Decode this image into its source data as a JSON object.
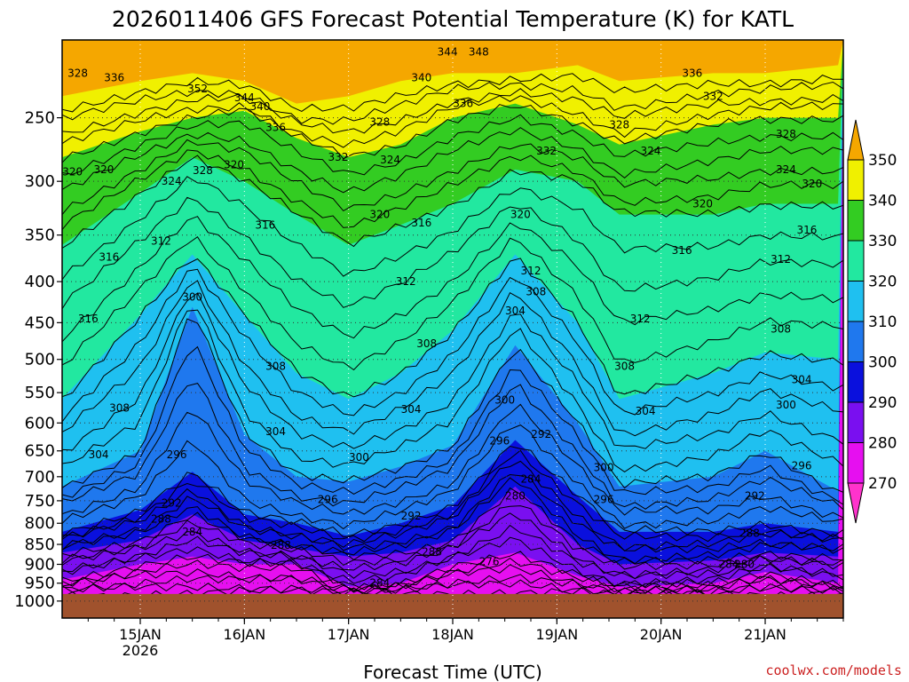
{
  "chart_data": {
    "type": "contour",
    "title": "2026011406 GFS Forecast Potential Temperature (K) for KATL",
    "xlabel": "Forecast Time (UTC)",
    "credit": "coolwx.com/models",
    "y_axis": {
      "scale": "log",
      "reversed": true,
      "range": [
        1000,
        200
      ],
      "ticks": [
        1000,
        950,
        900,
        850,
        800,
        750,
        700,
        650,
        600,
        550,
        500,
        450,
        400,
        350,
        300,
        250
      ]
    },
    "x_axis": {
      "range": [
        "2026-01-14T06",
        "2026-01-21T18"
      ],
      "ticks": [
        {
          "label": "15JAN",
          "sublabel": "2026",
          "day": 15
        },
        {
          "label": "16JAN",
          "sublabel": "",
          "day": 16
        },
        {
          "label": "17JAN",
          "sublabel": "",
          "day": 17
        },
        {
          "label": "18JAN",
          "sublabel": "",
          "day": 18
        },
        {
          "label": "19JAN",
          "sublabel": "",
          "day": 19
        },
        {
          "label": "20JAN",
          "sublabel": "",
          "day": 20
        },
        {
          "label": "21JAN",
          "sublabel": "",
          "day": 21
        }
      ]
    },
    "grid": true,
    "colorbar": {
      "ticks": [
        350,
        340,
        330,
        320,
        310,
        300,
        290,
        280,
        270
      ],
      "bands": [
        {
          "from": 350,
          "to": 360,
          "color": "#f5a700"
        },
        {
          "from": 340,
          "to": 350,
          "color": "#f0f000"
        },
        {
          "from": 330,
          "to": 340,
          "color": "#33cc22"
        },
        {
          "from": 320,
          "to": 330,
          "color": "#22e8a0"
        },
        {
          "from": 310,
          "to": 320,
          "color": "#1fc0f0"
        },
        {
          "from": 300,
          "to": 310,
          "color": "#1f78ee"
        },
        {
          "from": 290,
          "to": 300,
          "color": "#0a10dd"
        },
        {
          "from": 280,
          "to": 290,
          "color": "#7a0ff0"
        },
        {
          "from": 270,
          "to": 280,
          "color": "#e60ff0"
        },
        {
          "from": 260,
          "to": 270,
          "color": "#ff33cc"
        }
      ]
    },
    "ground_color": "#a0522d",
    "series": [
      {
        "values": [
          [
            14.25,
            980
          ],
          [
            15.5,
            980
          ],
          [
            16.0,
            975
          ],
          [
            17.0,
            975
          ],
          [
            18.0,
            975
          ],
          [
            18.6,
            975
          ],
          [
            19.2,
            975
          ],
          [
            19.6,
            980
          ],
          [
            20.5,
            980
          ],
          [
            21.7,
            980
          ]
        ]
      },
      {
        "values": [
          [
            14.25,
            940
          ],
          [
            15.0,
            900
          ],
          [
            15.5,
            880
          ],
          [
            16.0,
            900
          ],
          [
            16.5,
            900
          ],
          [
            17.0,
            960
          ],
          [
            17.5,
            950
          ],
          [
            18.0,
            900
          ],
          [
            18.6,
            870
          ],
          [
            19.2,
            930
          ],
          [
            19.6,
            960
          ],
          [
            20.5,
            950
          ],
          [
            21.0,
            920
          ],
          [
            21.7,
            950
          ]
        ]
      },
      {
        "values": [
          [
            14.25,
            870
          ],
          [
            15.0,
            840
          ],
          [
            15.5,
            780
          ],
          [
            16.0,
            840
          ],
          [
            16.5,
            860
          ],
          [
            17.0,
            880
          ],
          [
            17.5,
            870
          ],
          [
            18.0,
            840
          ],
          [
            18.6,
            720
          ],
          [
            19.2,
            850
          ],
          [
            19.6,
            900
          ],
          [
            20.5,
            890
          ],
          [
            21.0,
            870
          ],
          [
            21.7,
            880
          ]
        ]
      },
      {
        "values": [
          [
            14.25,
            820
          ],
          [
            15.0,
            770
          ],
          [
            15.5,
            690
          ],
          [
            16.0,
            780
          ],
          [
            16.5,
            800
          ],
          [
            17.0,
            830
          ],
          [
            17.5,
            800
          ],
          [
            18.0,
            760
          ],
          [
            18.6,
            630
          ],
          [
            19.2,
            740
          ],
          [
            19.6,
            820
          ],
          [
            20.5,
            820
          ],
          [
            21.0,
            800
          ],
          [
            21.7,
            820
          ]
        ]
      },
      {
        "values": [
          [
            14.25,
            720
          ],
          [
            15.0,
            650
          ],
          [
            15.5,
            430
          ],
          [
            16.0,
            620
          ],
          [
            16.5,
            700
          ],
          [
            17.0,
            710
          ],
          [
            17.5,
            680
          ],
          [
            18.0,
            640
          ],
          [
            18.6,
            480
          ],
          [
            19.2,
            600
          ],
          [
            19.6,
            720
          ],
          [
            20.5,
            700
          ],
          [
            21.0,
            650
          ],
          [
            21.7,
            730
          ]
        ]
      },
      {
        "values": [
          [
            14.25,
            560
          ],
          [
            15.0,
            440
          ],
          [
            15.5,
            370
          ],
          [
            16.0,
            440
          ],
          [
            16.5,
            520
          ],
          [
            17.0,
            560
          ],
          [
            17.5,
            520
          ],
          [
            18.0,
            460
          ],
          [
            18.6,
            370
          ],
          [
            19.2,
            450
          ],
          [
            19.6,
            560
          ],
          [
            20.5,
            520
          ],
          [
            21.0,
            490
          ],
          [
            21.7,
            500
          ]
        ]
      },
      {
        "values": [
          [
            14.25,
            360
          ],
          [
            15.0,
            310
          ],
          [
            15.5,
            280
          ],
          [
            16.0,
            300
          ],
          [
            16.5,
            330
          ],
          [
            17.0,
            360
          ],
          [
            17.5,
            340
          ],
          [
            18.0,
            320
          ],
          [
            18.6,
            290
          ],
          [
            19.2,
            300
          ],
          [
            19.6,
            330
          ],
          [
            20.5,
            330
          ],
          [
            21.0,
            320
          ],
          [
            21.7,
            320
          ]
        ]
      },
      {
        "values": [
          [
            14.25,
            280
          ],
          [
            15.0,
            260
          ],
          [
            15.5,
            250
          ],
          [
            16.0,
            245
          ],
          [
            16.5,
            265
          ],
          [
            17.0,
            280
          ],
          [
            17.5,
            270
          ],
          [
            18.0,
            250
          ],
          [
            18.6,
            240
          ],
          [
            19.2,
            255
          ],
          [
            19.6,
            270
          ],
          [
            20.5,
            255
          ],
          [
            21.0,
            250
          ],
          [
            21.7,
            250
          ]
        ]
      },
      {
        "values": [
          [
            14.25,
            235
          ],
          [
            15.0,
            225
          ],
          [
            15.5,
            220
          ],
          [
            16.0,
            225
          ],
          [
            16.5,
            240
          ],
          [
            17.0,
            235
          ],
          [
            17.5,
            225
          ],
          [
            18.0,
            220
          ],
          [
            18.6,
            220
          ],
          [
            19.2,
            215
          ],
          [
            19.6,
            225
          ],
          [
            20.5,
            220
          ],
          [
            21.0,
            220
          ],
          [
            21.7,
            215
          ]
        ]
      }
    ],
    "contour_labels": [
      {
        "text": "352",
        "x": 15.55,
        "p": 230
      },
      {
        "text": "344",
        "x": 17.95,
        "p": 207
      },
      {
        "text": "348",
        "x": 18.25,
        "p": 207
      },
      {
        "text": "340",
        "x": 17.7,
        "p": 223
      },
      {
        "text": "336",
        "x": 20.3,
        "p": 220
      },
      {
        "text": "332",
        "x": 20.5,
        "p": 235
      },
      {
        "text": "328",
        "x": 14.4,
        "p": 220
      },
      {
        "text": "336",
        "x": 14.75,
        "p": 223
      },
      {
        "text": "344",
        "x": 16.0,
        "p": 236
      },
      {
        "text": "340",
        "x": 16.15,
        "p": 242
      },
      {
        "text": "336",
        "x": 16.3,
        "p": 257
      },
      {
        "text": "336",
        "x": 18.1,
        "p": 240
      },
      {
        "text": "328",
        "x": 17.3,
        "p": 253
      },
      {
        "text": "332",
        "x": 16.9,
        "p": 280
      },
      {
        "text": "328",
        "x": 15.6,
        "p": 291
      },
      {
        "text": "320",
        "x": 15.9,
        "p": 286
      },
      {
        "text": "324",
        "x": 15.3,
        "p": 300
      },
      {
        "text": "324",
        "x": 17.4,
        "p": 282
      },
      {
        "text": "332",
        "x": 18.9,
        "p": 275
      },
      {
        "text": "328",
        "x": 19.6,
        "p": 255
      },
      {
        "text": "324",
        "x": 19.9,
        "p": 275
      },
      {
        "text": "328",
        "x": 21.2,
        "p": 262
      },
      {
        "text": "324",
        "x": 21.2,
        "p": 290
      },
      {
        "text": "320",
        "x": 21.45,
        "p": 302
      },
      {
        "text": "320",
        "x": 14.35,
        "p": 292
      },
      {
        "text": "320",
        "x": 14.65,
        "p": 290
      },
      {
        "text": "320",
        "x": 17.3,
        "p": 330
      },
      {
        "text": "316",
        "x": 17.7,
        "p": 338
      },
      {
        "text": "316",
        "x": 16.2,
        "p": 340
      },
      {
        "text": "320",
        "x": 18.65,
        "p": 330
      },
      {
        "text": "320",
        "x": 20.4,
        "p": 320
      },
      {
        "text": "316",
        "x": 20.2,
        "p": 366
      },
      {
        "text": "316",
        "x": 21.4,
        "p": 345
      },
      {
        "text": "312",
        "x": 21.15,
        "p": 375
      },
      {
        "text": "312",
        "x": 15.2,
        "p": 356
      },
      {
        "text": "316",
        "x": 14.7,
        "p": 373
      },
      {
        "text": "312",
        "x": 17.55,
        "p": 400
      },
      {
        "text": "312",
        "x": 18.75,
        "p": 388
      },
      {
        "text": "308",
        "x": 18.8,
        "p": 412
      },
      {
        "text": "304",
        "x": 18.6,
        "p": 435
      },
      {
        "text": "300",
        "x": 15.5,
        "p": 418
      },
      {
        "text": "316",
        "x": 14.5,
        "p": 445
      },
      {
        "text": "312",
        "x": 19.8,
        "p": 445
      },
      {
        "text": "308",
        "x": 21.15,
        "p": 458
      },
      {
        "text": "308",
        "x": 17.75,
        "p": 478
      },
      {
        "text": "308",
        "x": 16.3,
        "p": 510
      },
      {
        "text": "308",
        "x": 19.65,
        "p": 510
      },
      {
        "text": "304",
        "x": 21.35,
        "p": 530
      },
      {
        "text": "300",
        "x": 18.5,
        "p": 562
      },
      {
        "text": "300",
        "x": 21.2,
        "p": 570
      },
      {
        "text": "304",
        "x": 17.6,
        "p": 577
      },
      {
        "text": "304",
        "x": 19.85,
        "p": 580
      },
      {
        "text": "308",
        "x": 14.8,
        "p": 575
      },
      {
        "text": "304",
        "x": 16.3,
        "p": 615
      },
      {
        "text": "296",
        "x": 18.45,
        "p": 632
      },
      {
        "text": "292",
        "x": 18.85,
        "p": 620
      },
      {
        "text": "304",
        "x": 14.6,
        "p": 657
      },
      {
        "text": "296",
        "x": 15.35,
        "p": 657
      },
      {
        "text": "300",
        "x": 17.1,
        "p": 662
      },
      {
        "text": "300",
        "x": 19.45,
        "p": 682
      },
      {
        "text": "296",
        "x": 21.35,
        "p": 678
      },
      {
        "text": "284",
        "x": 18.75,
        "p": 705
      },
      {
        "text": "280",
        "x": 18.6,
        "p": 740
      },
      {
        "text": "296",
        "x": 16.8,
        "p": 747
      },
      {
        "text": "296",
        "x": 19.45,
        "p": 747
      },
      {
        "text": "292",
        "x": 20.9,
        "p": 740
      },
      {
        "text": "292",
        "x": 15.3,
        "p": 755
      },
      {
        "text": "292",
        "x": 17.6,
        "p": 783
      },
      {
        "text": "288",
        "x": 15.2,
        "p": 790
      },
      {
        "text": "284",
        "x": 15.5,
        "p": 820
      },
      {
        "text": "288",
        "x": 16.35,
        "p": 852
      },
      {
        "text": "288",
        "x": 17.8,
        "p": 869
      },
      {
        "text": "288",
        "x": 20.85,
        "p": 823
      },
      {
        "text": "276",
        "x": 18.35,
        "p": 893
      },
      {
        "text": "284",
        "x": 20.65,
        "p": 900
      },
      {
        "text": "280",
        "x": 20.8,
        "p": 900
      },
      {
        "text": "284",
        "x": 17.3,
        "p": 950
      }
    ]
  }
}
